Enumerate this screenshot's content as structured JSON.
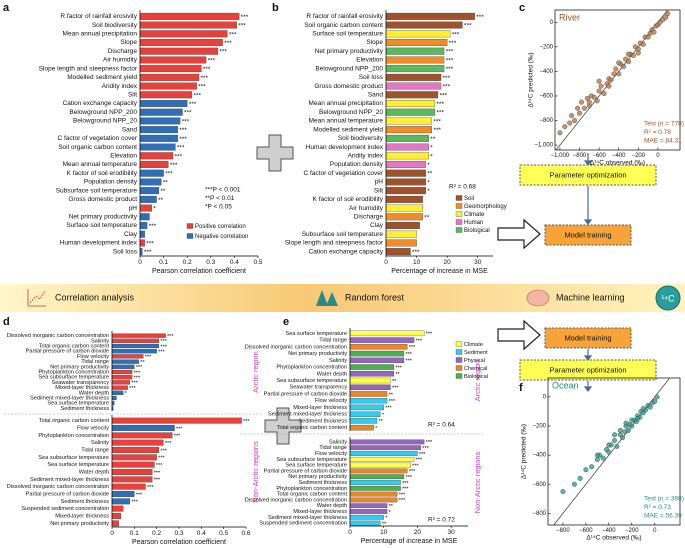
{
  "workflow": {
    "steps": [
      "Correlation analysis",
      "Random forest",
      "Machine learning"
    ],
    "badge": "¹⁴C",
    "boxes": [
      "Parameter optimization",
      "Model training",
      "Model training",
      "Parameter optimization"
    ]
  },
  "chart_data": [
    {
      "type": "hbar",
      "panel": "a",
      "xlabel": "Pearson correlation coefficient",
      "categories": [
        "R factor of rainfall erosivity",
        "Soil biodiversity",
        "Mean annual precipitation",
        "Slope",
        "Discharge",
        "Air humidity",
        "Slope length and steepness factor",
        "Modelled sediment yield",
        "Aridity index",
        "Silt",
        "Cation exchange capacity",
        "Belowground NPP_200",
        "Belowground NPP_20",
        "Sand",
        "C factor of vegetation cover",
        "Soil organic carbon content",
        "Elevation",
        "Mean annual temperature",
        "K factor of soil erodibility",
        "Population density",
        "Subsurface soil temperature",
        "Gross domestic product",
        "pH",
        "Net primary productivity",
        "Surface soil temperature",
        "Clay",
        "Human development index",
        "Soil loss"
      ],
      "values": [
        0.42,
        0.41,
        0.37,
        0.35,
        0.33,
        0.28,
        0.26,
        0.25,
        0.24,
        0.22,
        0.2,
        0.18,
        0.17,
        0.16,
        0.16,
        0.15,
        0.14,
        0.12,
        0.1,
        0.09,
        0.08,
        0.07,
        0.05,
        0.04,
        0.03,
        0.02,
        0.02,
        0.01
      ],
      "colors": [
        "#e8403a",
        "#e8403a",
        "#e8403a",
        "#e8403a",
        "#e8403a",
        "#e8403a",
        "#e8403a",
        "#e8403a",
        "#e8403a",
        "#e8403a",
        "#2e6fb7",
        "#2e6fb7",
        "#2e6fb7",
        "#2e6fb7",
        "#2e6fb7",
        "#2e6fb7",
        "#e8403a",
        "#e8403a",
        "#2e6fb7",
        "#2e6fb7",
        "#2e6fb7",
        "#2e6fb7",
        "#e8403a",
        "#2e6fb7",
        "#2e6fb7",
        "#2e6fb7",
        "#e8403a",
        "#2e6fb7"
      ],
      "significance": [
        "***",
        "***",
        "***",
        "***",
        "***",
        "***",
        "***",
        "***",
        "***",
        "***",
        "***",
        "***",
        "***",
        "***",
        "***",
        "***",
        "***",
        "***",
        "***",
        "**",
        "**",
        "**",
        "*",
        null,
        "***",
        null,
        "***",
        "***"
      ],
      "xlim": [
        0,
        0.5
      ],
      "xticks": [
        0,
        0.1,
        0.2,
        0.3,
        0.4,
        0.5
      ],
      "legend": [
        {
          "name": "Positive correlation",
          "color": "#e8403a"
        },
        {
          "name": "Negative correlation",
          "color": "#2e6fb7"
        }
      ],
      "notes": [
        "***P < 0.001",
        "**P < 0.01",
        "*P < 0.05"
      ]
    },
    {
      "type": "hbar",
      "panel": "b",
      "xlabel": "Percentage of increase in MSE",
      "annotation": "R² = 0.68",
      "categories": [
        "R factor of rainfall erosivity",
        "Soil organic carbon content",
        "Surface soil temperature",
        "Slope",
        "Net primary productivity",
        "Elevation",
        "Belowground NPP_200",
        "Soil loss",
        "Gross domestic product",
        "Sand",
        "Mean annual precipitation",
        "Belowground NPP_20",
        "Mean annual temperature",
        "Modelled sediment yield",
        "Soil biodiversity",
        "Human development index",
        "Aridity index",
        "Population density",
        "C factor of vegetation cover",
        "pH",
        "Silt",
        "K factor of soil erodibility",
        "Air humidity",
        "Discharge",
        "Clay",
        "Subsurface soil temperature",
        "Slope length and steepness factor",
        "Cation exchange capacity"
      ],
      "values": [
        29,
        25,
        21,
        20,
        19,
        19,
        19,
        18,
        18,
        17,
        16,
        16,
        15,
        15,
        14,
        14,
        14,
        13,
        13,
        13,
        13,
        12,
        12,
        12,
        11,
        10,
        10,
        8
      ],
      "colors": [
        "#a0522d",
        "#a0522d",
        "#ffee33",
        "#f28c28",
        "#5cb85c",
        "#f28c28",
        "#5cb85c",
        "#a0522d",
        "#e377c2",
        "#a0522d",
        "#ffee33",
        "#5cb85c",
        "#ffee33",
        "#f28c28",
        "#5cb85c",
        "#e377c2",
        "#ffee33",
        "#e377c2",
        "#a0522d",
        "#a0522d",
        "#a0522d",
        "#a0522d",
        "#ffee33",
        "#f28c28",
        "#a0522d",
        "#ffee33",
        "#f28c28",
        "#a0522d"
      ],
      "significance": [
        "***",
        "***",
        "***",
        "***",
        "***",
        "***",
        "***",
        "***",
        "***",
        "***",
        "***",
        "***",
        "***",
        "***",
        "**",
        "*",
        "*",
        "*",
        "**",
        "*",
        "*",
        null,
        null,
        "**",
        null,
        null,
        null,
        "***"
      ],
      "xlim": [
        0,
        35
      ],
      "xticks": [
        0,
        10,
        20,
        30
      ],
      "legend": [
        {
          "name": "Soil",
          "color": "#a0522d"
        },
        {
          "name": "Geomorphology",
          "color": "#f28c28"
        },
        {
          "name": "Climate",
          "color": "#ffee33"
        },
        {
          "name": "Human",
          "color": "#e377c2"
        },
        {
          "name": "Biological",
          "color": "#5cb85c"
        }
      ]
    },
    {
      "type": "scatter",
      "panel": "c",
      "title": "River",
      "xlabel": "Δ¹⁴C observed (‰)",
      "ylabel": "Δ¹⁴C predicted (‰)",
      "color": "#b87a4b",
      "text_color": "#a0522d",
      "stats": [
        "Test (n = 778)",
        "R² = 0.78",
        "MAE = 84.31"
      ],
      "x": [
        -1000,
        -950,
        -900,
        -880,
        -850,
        -820,
        -800,
        -780,
        -750,
        -720,
        -700,
        -680,
        -650,
        -620,
        -600,
        -580,
        -550,
        -520,
        -500,
        -480,
        -450,
        -430,
        -400,
        -380,
        -350,
        -330,
        -300,
        -280,
        -250,
        -230,
        -200,
        -180,
        -150,
        -130,
        -100,
        -80,
        -60,
        -40,
        -20,
        0,
        20,
        50,
        80,
        100,
        -600,
        -400,
        -200,
        -700,
        -300,
        -500
      ],
      "values": [
        -900,
        -850,
        -820,
        -760,
        -800,
        -700,
        -740,
        -650,
        -700,
        -620,
        -680,
        -600,
        -610,
        -640,
        -560,
        -520,
        -580,
        -500,
        -460,
        -470,
        -420,
        -380,
        -420,
        -340,
        -360,
        -300,
        -320,
        -260,
        -270,
        -200,
        -220,
        -170,
        -180,
        -120,
        -120,
        -90,
        -60,
        -80,
        -30,
        -20,
        0,
        20,
        40,
        70,
        -480,
        -330,
        -250,
        -650,
        -260,
        -520
      ],
      "xlim": [
        -1050,
        225
      ],
      "ylim": [
        -1040,
        100
      ],
      "xticks": [
        {
          "value": -1000,
          "label": "−1,000"
        },
        {
          "value": -800,
          "label": "−800"
        },
        {
          "value": -600,
          "label": "−600"
        },
        {
          "value": -400,
          "label": "−400"
        },
        {
          "value": -200,
          "label": "−200"
        },
        0
      ],
      "yticks": [
        {
          "value": -1000,
          "label": "−1,000"
        },
        {
          "value": -800,
          "label": "−800"
        },
        {
          "value": -600,
          "label": "−600"
        },
        {
          "value": -400,
          "label": "−400"
        },
        {
          "value": -200,
          "label": "−200"
        },
        0
      ]
    },
    {
      "type": "hbar",
      "panel": "d",
      "region": "Arctic region",
      "categories": [
        "Dissolved inorganic carbon concentration",
        "Salinity",
        "Total organic carbon content",
        "Partial pressure of carbon dioxide",
        "Flow velocity",
        "Tidal range",
        "Net primary productivity",
        "Phytoplankton concentration",
        "Sea subsurface temperature",
        "Seawater transparency",
        "Mixed-layer thickness",
        "Water depth",
        "Sediment mixed-layer thickness",
        "Sea surface temperature",
        "Sediment thickness"
      ],
      "values": [
        0.24,
        0.21,
        0.21,
        0.2,
        0.14,
        0.12,
        0.1,
        0.09,
        0.09,
        0.08,
        0.07,
        0.05,
        0.02,
        0.01,
        0.005
      ],
      "colors": [
        "#e8403a",
        "#e8403a",
        "#2e6fb7",
        "#2e6fb7",
        "#e8403a",
        "#2e6fb7",
        "#2e6fb7",
        "#e8403a",
        "#e8403a",
        "#e8403a",
        "#e8403a",
        "#2e6fb7",
        "#2e6fb7",
        "#2e6fb7",
        "#2e6fb7"
      ],
      "significance": [
        "***",
        "***",
        "***",
        "***",
        "***",
        "**",
        "***",
        "***",
        "***",
        "***",
        "***",
        "*",
        null,
        null,
        null
      ],
      "xlim": [
        0,
        0.6
      ]
    },
    {
      "type": "hbar",
      "region": "Non-Arctic regions",
      "xlabel": "Pearson correlation coefficient",
      "categories": [
        "Total organic carbon content",
        "Flow velocity",
        "Phytoplankton concentration",
        "Salinity",
        "Tidal range",
        "Sea subsurface temperature",
        "Sea surface temperature",
        "Water depth",
        "Sediment mixed-layer thickness",
        "Dissolved inorganic carbon concentration",
        "Partial pressure of carbon dioxide",
        "Sediment thickness",
        "Suspended sediment concentration",
        "Mixed-layer thickness",
        "Net primary productivity"
      ],
      "values": [
        0.58,
        0.28,
        0.27,
        0.23,
        0.21,
        0.2,
        0.19,
        0.18,
        0.18,
        0.15,
        0.1,
        0.08,
        0.05,
        0.04,
        0.03
      ],
      "colors": [
        "#e8403a",
        "#2e6fb7",
        "#e8403a",
        "#e8403a",
        "#e8403a",
        "#e8403a",
        "#e8403a",
        "#e8403a",
        "#e8403a",
        "#e8403a",
        "#2e6fb7",
        "#2e6fb7",
        "#e8403a",
        "#e8403a",
        "#e8403a"
      ],
      "significance": [
        "***",
        "***",
        "***",
        "***",
        "***",
        "***",
        "***",
        "***",
        "***",
        "***",
        "***",
        "***",
        null,
        null,
        null
      ],
      "xlim": [
        0,
        0.6
      ],
      "xticks": [
        0,
        0.1,
        0.2,
        0.3,
        0.4,
        0.5,
        0.6
      ]
    },
    {
      "type": "hbar",
      "panel": "e",
      "region": "Arctic region",
      "annotation": "R² = 0.64",
      "categories": [
        "Sea surface temperature",
        "Tidal range",
        "Dissolved inorganic carbon concentration",
        "Net primary productivity",
        "Salinity",
        "Phytoplankton concentration",
        "Water depth",
        "Sea subsurface temperature",
        "Seawater transparency",
        "Partial pressure of carbon dioxide",
        "Flow velocity",
        "Mixed-layer thickness",
        "Sediment mixed-layer thickness",
        "Sediment thickness",
        "Total organic carbon content"
      ],
      "values": [
        22,
        19,
        17,
        16,
        16,
        13,
        13,
        12,
        12,
        11,
        11,
        10,
        9,
        8,
        7
      ],
      "colors": [
        "#ffff44",
        "#9467bd",
        "#e8862a",
        "#4caf50",
        "#9467bd",
        "#4caf50",
        "#9467bd",
        "#ffff44",
        "#9467bd",
        "#e8862a",
        "#33ccee",
        "#33ccee",
        "#33ccee",
        "#33ccee",
        "#e8862a"
      ],
      "significance": [
        "***",
        "***",
        "***",
        "***",
        "***",
        "***",
        "**",
        "**",
        "***",
        "**",
        "***",
        "***",
        "*",
        "**",
        "*"
      ],
      "xlim": [
        0,
        35
      ],
      "legend": [
        {
          "name": "Climate",
          "color": "#ffff44"
        },
        {
          "name": "Sediment",
          "color": "#33ccee"
        },
        {
          "name": "Physical",
          "color": "#9467bd"
        },
        {
          "name": "Chemical",
          "color": "#e8862a"
        },
        {
          "name": "Biological",
          "color": "#4caf50"
        }
      ]
    },
    {
      "type": "hbar",
      "region": "Non-Arctic regions",
      "annotation": "R² = 0.72",
      "xlabel": "Percentage of increase in MSE",
      "categories": [
        "Salinity",
        "Tidal range",
        "Flow velocity",
        "Sea subsurface temperature",
        "Sea surface temperature",
        "Partial pressure of carbon dioxide",
        "Net primary productivity",
        "Sediment thickness",
        "Phytoplankton concentration",
        "Total organic carbon content",
        "Dissolved inorganic carbon concentration",
        "Water depth",
        "Mixed-layer thickness",
        "Sediment mixed-layer thickness",
        "Suspended sediment concentration"
      ],
      "values": [
        22,
        21,
        20,
        19,
        18,
        17,
        16,
        15,
        15,
        14,
        14,
        11,
        11,
        10,
        9
      ],
      "colors": [
        "#9467bd",
        "#9467bd",
        "#33ccee",
        "#ffff44",
        "#ffff44",
        "#e8862a",
        "#4caf50",
        "#33ccee",
        "#4caf50",
        "#e8862a",
        "#e8862a",
        "#9467bd",
        "#9467bd",
        "#33ccee",
        "#33ccee"
      ],
      "significance": [
        "***",
        "***",
        "***",
        "***",
        "***",
        "***",
        "***",
        "***",
        "***",
        "***",
        "***",
        "**",
        "*",
        "*",
        "**"
      ],
      "xlim": [
        0,
        35
      ],
      "xticks": [
        0,
        10,
        20,
        30
      ]
    },
    {
      "type": "scatter",
      "panel": "f",
      "title": "Ocean",
      "xlabel": "Δ¹⁴C observed (‰)",
      "ylabel": "Δ¹⁴C predicted (‰)",
      "color": "#3a9e8c",
      "text_color": "#2b8a7a",
      "stats": [
        "Test (n = 398)",
        "R² = 0.73",
        "MAE = 56.39"
      ],
      "x": [
        -800,
        -700,
        -650,
        -600,
        -550,
        -500,
        -480,
        -450,
        -420,
        -400,
        -380,
        -350,
        -330,
        -300,
        -280,
        -260,
        -250,
        -230,
        -220,
        -200,
        -180,
        -160,
        -150,
        -130,
        -120,
        -100,
        -80,
        -60,
        -40,
        -20,
        0,
        20,
        -350,
        -250,
        -150,
        -300,
        -200,
        -100,
        -400,
        -500
      ],
      "values": [
        -650,
        -600,
        -560,
        -500,
        -480,
        -430,
        -400,
        -420,
        -360,
        -380,
        -330,
        -300,
        -340,
        -260,
        -280,
        -240,
        -200,
        -230,
        -190,
        -200,
        -160,
        -170,
        -130,
        -140,
        -100,
        -110,
        -90,
        -60,
        -70,
        -40,
        -30,
        0,
        -260,
        -180,
        -150,
        -230,
        -160,
        -80,
        -330,
        -400
      ],
      "xlim": [
        -930,
        220
      ],
      "ylim": [
        -880,
        130
      ],
      "xticks": [
        {
          "value": -800,
          "label": "−800"
        },
        {
          "value": -600,
          "label": "−600"
        },
        {
          "value": -400,
          "label": "−400"
        },
        {
          "value": -200,
          "label": "−200"
        },
        0
      ],
      "yticks": [
        {
          "value": -800,
          "label": "−800"
        },
        {
          "value": -600,
          "label": "−600"
        },
        {
          "value": -400,
          "label": "−400"
        },
        {
          "value": -200,
          "label": "−200"
        },
        0
      ]
    }
  ]
}
